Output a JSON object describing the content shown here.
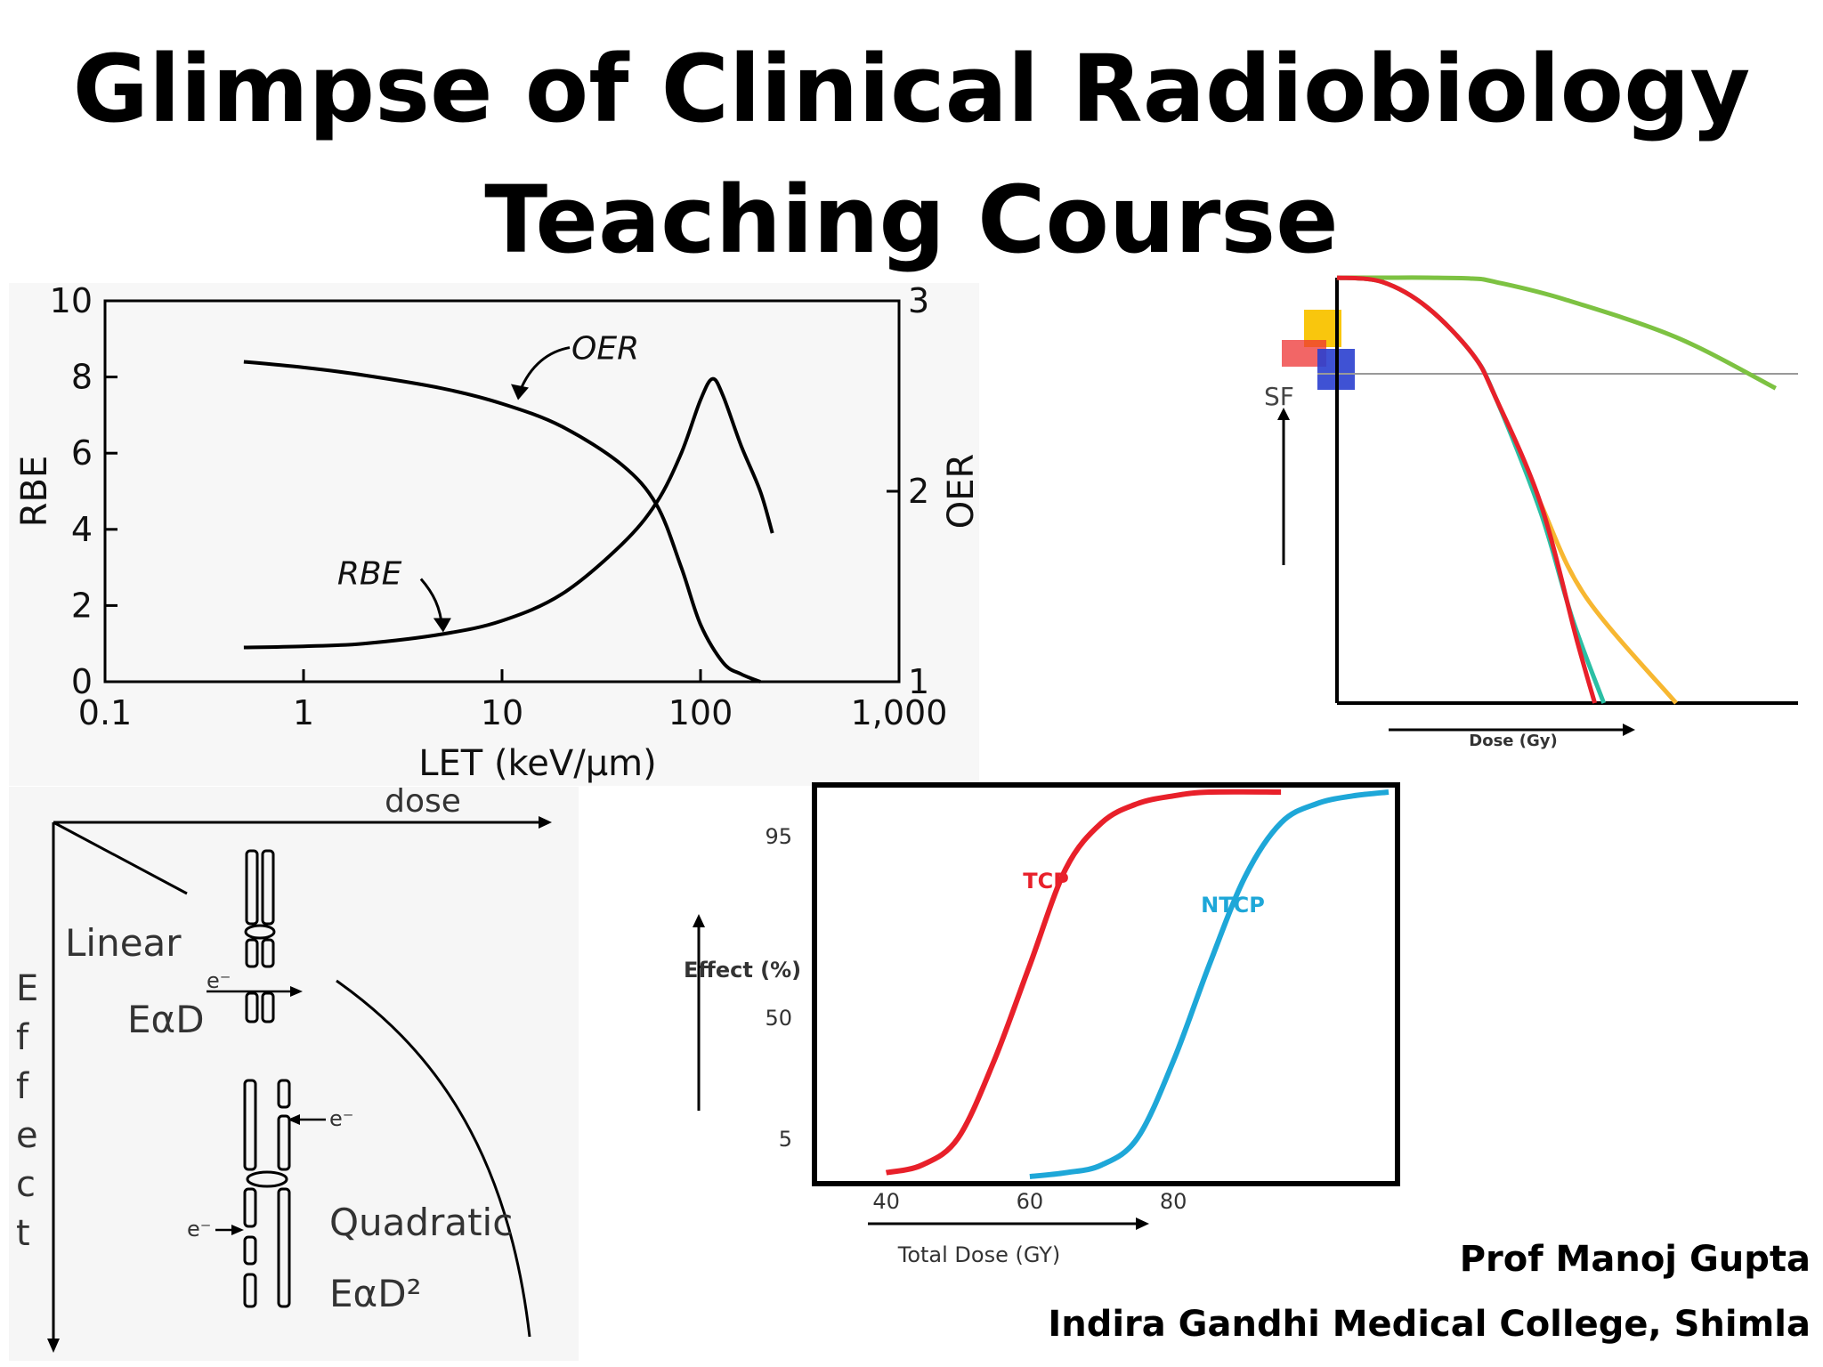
{
  "slide": {
    "title_line1": "Glimpse of Clinical Radiobiology",
    "title_line2": "Teaching Course",
    "author": "Prof Manoj Gupta",
    "institution": "Indira Gandhi Medical College, Shimla"
  },
  "chart_data": [
    {
      "type": "line",
      "xlabel": "LET (keV/μm)",
      "ylabel": "RBE",
      "y2label": "OER",
      "x_scale": "log",
      "xlim": [
        0.1,
        1000
      ],
      "ylim": [
        0,
        10
      ],
      "y2lim": [
        1,
        3
      ],
      "x_ticks": [
        "0.1",
        "1",
        "10",
        "100",
        "1,000"
      ],
      "y_ticks": [
        "0",
        "2",
        "4",
        "6",
        "8",
        "10"
      ],
      "y2_ticks": [
        "1",
        "2",
        "3"
      ],
      "series": [
        {
          "name": "OER",
          "axis": "right",
          "x": [
            0.5,
            1,
            2,
            5,
            10,
            20,
            40,
            60,
            80,
            100,
            130,
            160,
            200
          ],
          "y": [
            2.68,
            2.65,
            2.61,
            2.54,
            2.46,
            2.34,
            2.14,
            1.93,
            1.6,
            1.3,
            1.1,
            1.04,
            1.0
          ]
        },
        {
          "name": "RBE",
          "axis": "left",
          "x": [
            0.5,
            1,
            2,
            5,
            10,
            20,
            40,
            60,
            80,
            100,
            115,
            130,
            160,
            200,
            230
          ],
          "y": [
            0.9,
            0.93,
            1.0,
            1.25,
            1.6,
            2.3,
            3.6,
            4.7,
            6.0,
            7.4,
            7.95,
            7.5,
            6.2,
            5.0,
            3.9
          ]
        }
      ]
    },
    {
      "type": "line",
      "ylabel": "SF",
      "xlabel": "Dose (Gy)",
      "series": [
        {
          "color": "#7dc242",
          "x": [
            0,
            1,
            2,
            3,
            3.5,
            5,
            7.5,
            9.7
          ],
          "y": [
            1.0,
            1.0,
            1.0,
            0.998,
            0.99,
            0.95,
            0.86,
            0.74
          ]
        },
        {
          "color": "#f7b731",
          "x": [
            0,
            1,
            2,
            3,
            3.5,
            4.5,
            5.5,
            7.5
          ],
          "y": [
            1.0,
            0.99,
            0.93,
            0.82,
            0.72,
            0.47,
            0.25,
            0.0
          ]
        },
        {
          "color": "#2bbfa4",
          "x": [
            0,
            1,
            2,
            3,
            3.5,
            4.5,
            5.2,
            5.9
          ],
          "y": [
            1.0,
            0.99,
            0.93,
            0.82,
            0.72,
            0.45,
            0.2,
            0.0
          ]
        },
        {
          "color": "#e8202a",
          "x": [
            0,
            1,
            2,
            3,
            3.5,
            4.5,
            5.3,
            5.7
          ],
          "y": [
            1.0,
            0.99,
            0.93,
            0.82,
            0.72,
            0.47,
            0.15,
            0.0
          ]
        }
      ],
      "colors": {
        "gold_square": "#f9c300",
        "red_square": "#ee3333",
        "blue_square": "#2a3fcf"
      }
    },
    {
      "type": "line",
      "xlabel": "dose",
      "ylabel": "Effect",
      "annotations": [
        "Linear",
        "EαD",
        "Quadratic",
        "EαD²",
        "e⁻"
      ]
    },
    {
      "type": "line",
      "xlabel": "Total Dose (GY)",
      "ylabel": "Effect (%)",
      "x_ticks": [
        "40",
        "60",
        "80"
      ],
      "y_ticks": [
        "5",
        "50",
        "95"
      ],
      "series": [
        {
          "name": "TCP",
          "color": "#e8202a",
          "x": [
            40,
            45,
            50,
            55,
            60,
            65,
            70,
            75,
            80,
            85,
            95
          ],
          "y": [
            1,
            3,
            10,
            30,
            55,
            80,
            92,
            97,
            99,
            100,
            100
          ]
        },
        {
          "name": "NTCP",
          "color": "#1ea7d8",
          "x": [
            60,
            65,
            70,
            75,
            80,
            85,
            90,
            95,
            100,
            105,
            110
          ],
          "y": [
            0,
            1,
            3,
            10,
            30,
            55,
            78,
            92,
            97,
            99,
            100
          ]
        }
      ]
    }
  ]
}
